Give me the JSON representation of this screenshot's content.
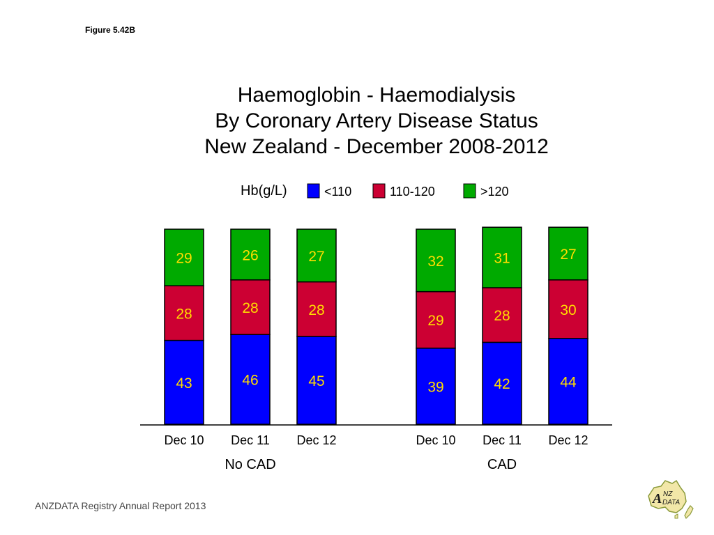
{
  "figure_label": "Figure 5.42B",
  "footer": "ANZDATA Registry Annual Report 2013",
  "logo": {
    "icon": "anzdata-logo-icon",
    "text": "ANZDATA"
  },
  "colors": {
    "lt110": "#0000ff",
    "r110_120": "#cc0033",
    "gt120": "#00aa00",
    "label": "#ffdd00"
  },
  "chart_data": {
    "type": "bar",
    "stacked": true,
    "title": [
      "Haemoglobin - Haemodialysis",
      "By Coronary Artery Disease Status",
      "New Zealand - December 2008-2012"
    ],
    "legend_title": "Hb(g/L)",
    "legend_position": "top",
    "groups": [
      {
        "name": "No CAD",
        "categories": [
          "Dec 10",
          "Dec 11",
          "Dec 12"
        ]
      },
      {
        "name": "CAD",
        "categories": [
          "Dec 10",
          "Dec 11",
          "Dec 12"
        ]
      }
    ],
    "series": [
      {
        "name": "<110",
        "color": "#0000ff",
        "values": [
          43,
          46,
          45,
          39,
          42,
          44
        ]
      },
      {
        "name": "110-120",
        "color": "#cc0033",
        "values": [
          28,
          28,
          28,
          29,
          28,
          30
        ]
      },
      {
        "name": ">120",
        "color": "#00aa00",
        "values": [
          29,
          26,
          27,
          32,
          31,
          27
        ]
      }
    ],
    "ylim": [
      0,
      100
    ],
    "grid": false
  }
}
